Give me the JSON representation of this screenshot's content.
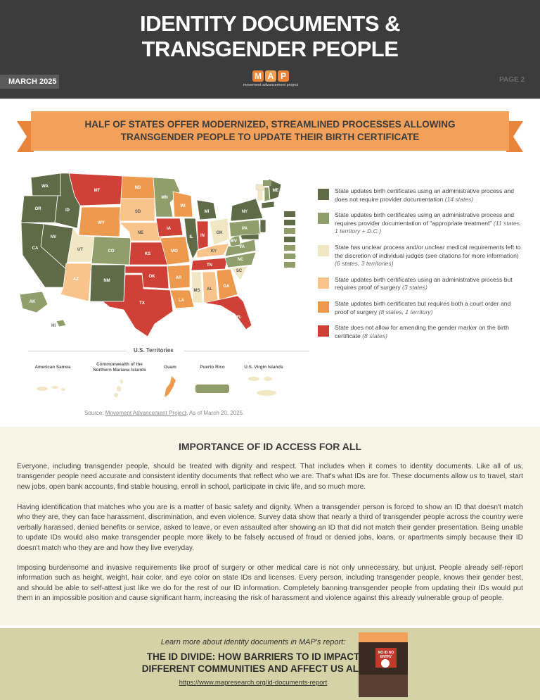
{
  "header": {
    "title_line1": "IDENTITY DOCUMENTS &",
    "title_line2": "TRANSGENDER PEOPLE",
    "date": "MARCH 2025",
    "page": "PAGE 2",
    "logo_letters": [
      "M",
      "A",
      "P"
    ],
    "logo_text": "movement advancement project"
  },
  "banner": {
    "line1": "HALF OF STATES OFFER MODERNIZED, STREAMLINED PROCESSES ALLOWING",
    "line2": "TRANSGENDER PEOPLE TO UPDATE THEIR BIRTH CERTIFICATE"
  },
  "colors": {
    "dark_green": "#5f6b47",
    "light_green": "#8f9e6a",
    "cream": "#f1e7c4",
    "peach": "#f8c48c",
    "orange": "#ee9a4e",
    "red": "#cf4036"
  },
  "legend": [
    {
      "text": "State updates birth certificates using an administrative process and does not require provider documentation",
      "note": "(14 states)",
      "color": "#5f6b47"
    },
    {
      "text": "State updates birth certificates using an administrative process and requires provider documentation of \"appropriate treatment\"",
      "note": "(11 states, 1 territory + D.C.)",
      "color": "#8f9e6a"
    },
    {
      "text": "State has unclear process and/or unclear medical requirements left to the discretion of individual judges (see citations for more information)",
      "note": "(6 states, 3 territories)",
      "color": "#f1e7c4"
    },
    {
      "text": "State updates birth certificates using an administrative process but requires proof of surgery",
      "note": "(3 states)",
      "color": "#f8c48c"
    },
    {
      "text": "State updates birth certificates but requires both a court order and proof of surgery",
      "note": "(8 states, 1 territory)",
      "color": "#ee9a4e"
    },
    {
      "text": "State does not allow for amending the gender marker on the birth certificate",
      "note": "(8 states)",
      "color": "#cf4036"
    }
  ],
  "map_labels": [
    "WA",
    "OR",
    "ID",
    "MT",
    "ND",
    "MN",
    "WI",
    "MI",
    "NY",
    "VT",
    "NH",
    "ME",
    "MA",
    "RI",
    "CT",
    "NJ",
    "DE",
    "MD",
    "DC",
    "NV",
    "CA",
    "UT",
    "WY",
    "SD",
    "NE",
    "IA",
    "IL",
    "IN",
    "OH",
    "PA",
    "WV",
    "VA",
    "NC",
    "SC",
    "CO",
    "KS",
    "MO",
    "KY",
    "TN",
    "AZ",
    "NM",
    "OK",
    "AR",
    "MS",
    "AL",
    "GA",
    "TX",
    "LA",
    "FL",
    "AK",
    "HI"
  ],
  "territories": {
    "title": "U.S. Territories",
    "items": [
      {
        "name": "American Samoa",
        "color": "#f1e7c4"
      },
      {
        "name": "Commonwealth of the Northern Mariana Islands",
        "color": "#f1e7c4"
      },
      {
        "name": "Guam",
        "color": "#ee9a4e"
      },
      {
        "name": "Puerto Rico",
        "color": "#8f9e6a"
      },
      {
        "name": "U.S. Virgin Islands",
        "color": "#f1e7c4"
      }
    ]
  },
  "source": {
    "prefix": "Source: ",
    "link": "Movement Advancement Project",
    "suffix": ". As of March 20, 2025."
  },
  "importance": {
    "title": "IMPORTANCE OF ID ACCESS FOR ALL",
    "paragraphs": [
      "Everyone, including transgender people, should be treated with dignity and respect. That includes when it comes to identity documents. Like all of us, transgender people need accurate and consistent identity documents that reflect who we are. That's what IDs are for. These documents allow us to travel, start new jobs, open bank accounts, find stable housing, enroll in school, participate in civic life, and so much more.",
      "Having identification that matches who you are is a matter of basic safety and dignity. When a transgender person is forced to show an ID that doesn't match who they are, they can face harassment, discrimination, and even violence. Survey data show that nearly a third of transgender people across the country were verbally harassed, denied benefits or service, asked to leave, or even assaulted after showing an ID that did not match their gender presentation. Being unable to update IDs would also make transgender people more likely to be falsely accused of fraud or denied jobs, loans, or apartments simply because their ID doesn't match who they are and how they live everyday.",
      "Imposing burdensome and invasive requirements like proof of surgery or other medical care is not only unnecessary, but unjust. People already self-report information such as height, weight, hair color, and eye color on state IDs and licenses. Every person, including transgender people, knows their gender best, and should be able to self-attest just like we do for the rest of our ID information. Completely banning transgender people from updating their IDs would put them in an impossible position and cause significant harm, increasing the risk of harassment and violence against this already vulnerable group of people."
    ]
  },
  "footer": {
    "learn": "Learn more about identity documents in MAP's report:",
    "report_line1": "THE ID DIVIDE: HOW BARRIERS TO ID IMPACT",
    "report_line2": "DIFFERENT COMMUNITIES AND AFFECT US ALL",
    "url": "https://www.mapresearch.org/id-documents-report",
    "cover_sign": "NO ID NO ENTRY"
  }
}
